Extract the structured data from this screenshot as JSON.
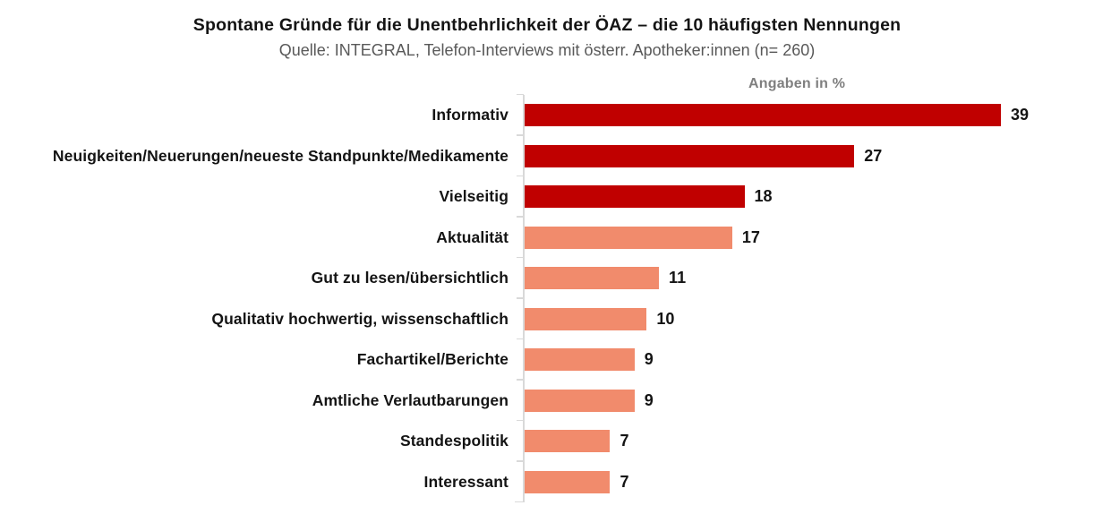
{
  "header": {
    "title": "Spontane Gründe für die Unentbehrlichkeit der ÖAZ – die 10 häufigsten Nennungen",
    "subtitle": "Quelle: INTEGRAL, Telefon-Interviews mit österr. Apotheker:innen (n= 260)"
  },
  "chart_data": {
    "type": "bar",
    "orientation": "horizontal",
    "title": "Spontane Gründe für die Unentbehrlichkeit der ÖAZ – die 10 häufigsten Nennungen",
    "subtitle": "Quelle: INTEGRAL, Telefon-Interviews mit österr. Apotheker:innen (n= 260)",
    "axis_label": "Angaben in %",
    "categories": [
      "Informativ",
      "Neuigkeiten/Neuerungen/neueste Standpunkte/Medikamente",
      "Vielseitig",
      "Aktualität",
      "Gut zu lesen/übersichtlich",
      "Qualitativ hochwertig, wissenschaftlich",
      "Fachartikel/Berichte",
      "Amtliche Verlautbarungen",
      "Standespolitik",
      "Interessant"
    ],
    "values": [
      39,
      27,
      18,
      17,
      11,
      10,
      9,
      9,
      7,
      7
    ],
    "bar_colors": [
      "#c00000",
      "#c00000",
      "#c00000",
      "#f18b6c",
      "#f18b6c",
      "#f18b6c",
      "#f18b6c",
      "#f18b6c",
      "#f18b6c",
      "#f18b6c"
    ],
    "xlabel": "Angaben in %",
    "ylabel": "",
    "xlim": [
      0,
      39
    ],
    "grid": false,
    "legend": false,
    "value_labels": true,
    "colors": {
      "dark_red": "#c00000",
      "salmon": "#f18b6c",
      "axis": "#d9d9d9",
      "title_text": "#141414",
      "subtitle_text": "#595959",
      "axis_label_text": "#7f7f7f"
    }
  }
}
